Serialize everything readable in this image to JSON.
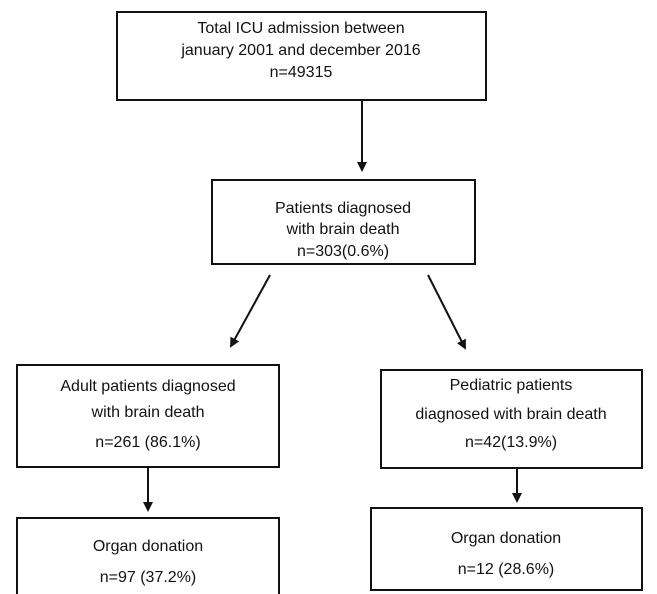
{
  "nodes": [
    {
      "lines": [
        "Total ICU admission between",
        "january 2001 and december 2016",
        "n=49315"
      ]
    },
    {
      "lines": [
        "Patients diagnosed",
        "with brain death",
        "n=303(0.6%)"
      ]
    },
    {
      "lines": [
        "Adult patients diagnosed",
        "with brain death",
        "n=261 (86.1%)"
      ]
    },
    {
      "lines": [
        "Pediatric patients",
        "diagnosed with brain death",
        "n=42(13.9%)"
      ]
    },
    {
      "lines": [
        "Organ donation",
        "n=97 (37.2%)"
      ]
    },
    {
      "lines": [
        "Organ donation",
        "n=12 (28.6%)"
      ]
    }
  ]
}
